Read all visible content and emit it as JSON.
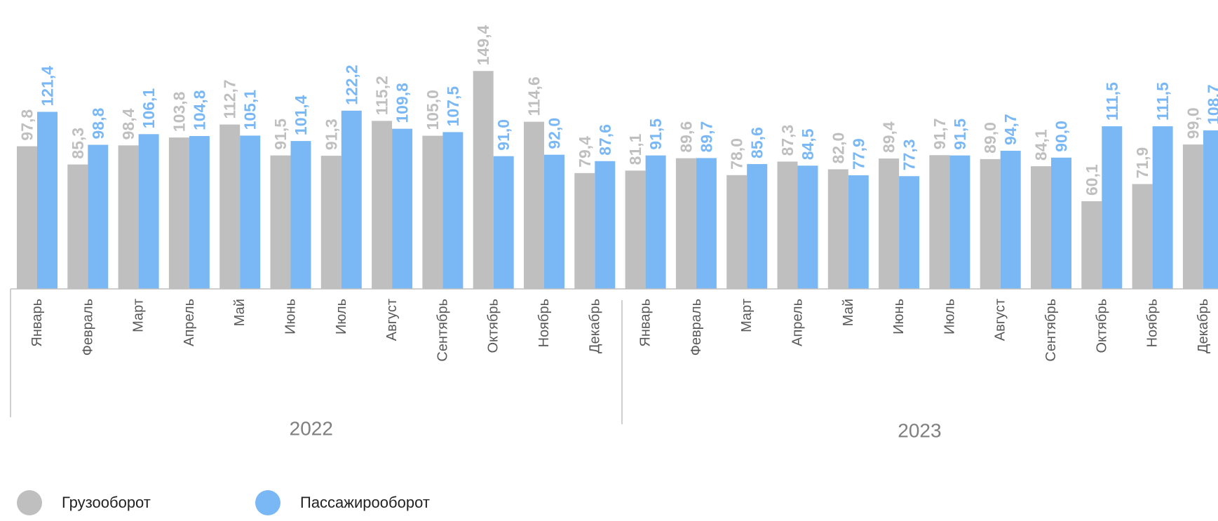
{
  "chart_data": {
    "type": "bar",
    "categories": [
      "Январь",
      "Февраль",
      "Март",
      "Апрель",
      "Май",
      "Июнь",
      "Июль",
      "Август",
      "Сентябрь",
      "Октябрь",
      "Ноябрь",
      "Декабрь",
      "Январь",
      "Февраль",
      "Март",
      "Апрель",
      "Май",
      "Июнь",
      "Июль",
      "Август",
      "Сентябрь",
      "Октябрь",
      "Ноябрь",
      "Декабрь"
    ],
    "years": [
      {
        "label": "2022",
        "start": 0,
        "count": 12
      },
      {
        "label": "2023",
        "start": 12,
        "count": 12
      }
    ],
    "series": [
      {
        "name": "Грузооборот",
        "color": "#bfbfbf",
        "values": [
          97.8,
          85.3,
          98.4,
          103.8,
          112.7,
          91.5,
          91.3,
          115.2,
          105.0,
          149.4,
          114.6,
          79.4,
          81.1,
          89.6,
          78.0,
          87.3,
          82.0,
          89.4,
          91.7,
          89.0,
          84.1,
          60.1,
          71.9,
          99.0
        ],
        "labels": [
          "97,8",
          "85,3",
          "98,4",
          "103,8",
          "112,7",
          "91,5",
          "91,3",
          "115,2",
          "105,0",
          "149,4",
          "114,6",
          "79,4",
          "81,1",
          "89,6",
          "78,0",
          "87,3",
          "82,0",
          "89,4",
          "91,7",
          "89,0",
          "84,1",
          "60,1",
          "71,9",
          "99,0"
        ]
      },
      {
        "name": "Пассажирооборот",
        "color": "#7ab8f5",
        "values": [
          121.4,
          98.8,
          106.1,
          104.8,
          105.1,
          101.4,
          122.2,
          109.8,
          107.5,
          91.0,
          92.0,
          87.6,
          91.5,
          89.7,
          85.6,
          84.5,
          77.9,
          77.3,
          91.5,
          94.7,
          90.0,
          111.5,
          111.5,
          108.7
        ],
        "labels": [
          "121,4",
          "98,8",
          "106,1",
          "104,8",
          "105,1",
          "101,4",
          "122,2",
          "109,8",
          "107,5",
          "91,0",
          "92,0",
          "87,6",
          "91,5",
          "89,7",
          "85,6",
          "84,5",
          "77,9",
          "77,3",
          "91,5",
          "94,7",
          "90,0",
          "111,5",
          "111,5",
          "108,7"
        ]
      }
    ],
    "ylim": [
      0,
      200
    ],
    "legend_position": "bottom-left",
    "grid": false
  }
}
